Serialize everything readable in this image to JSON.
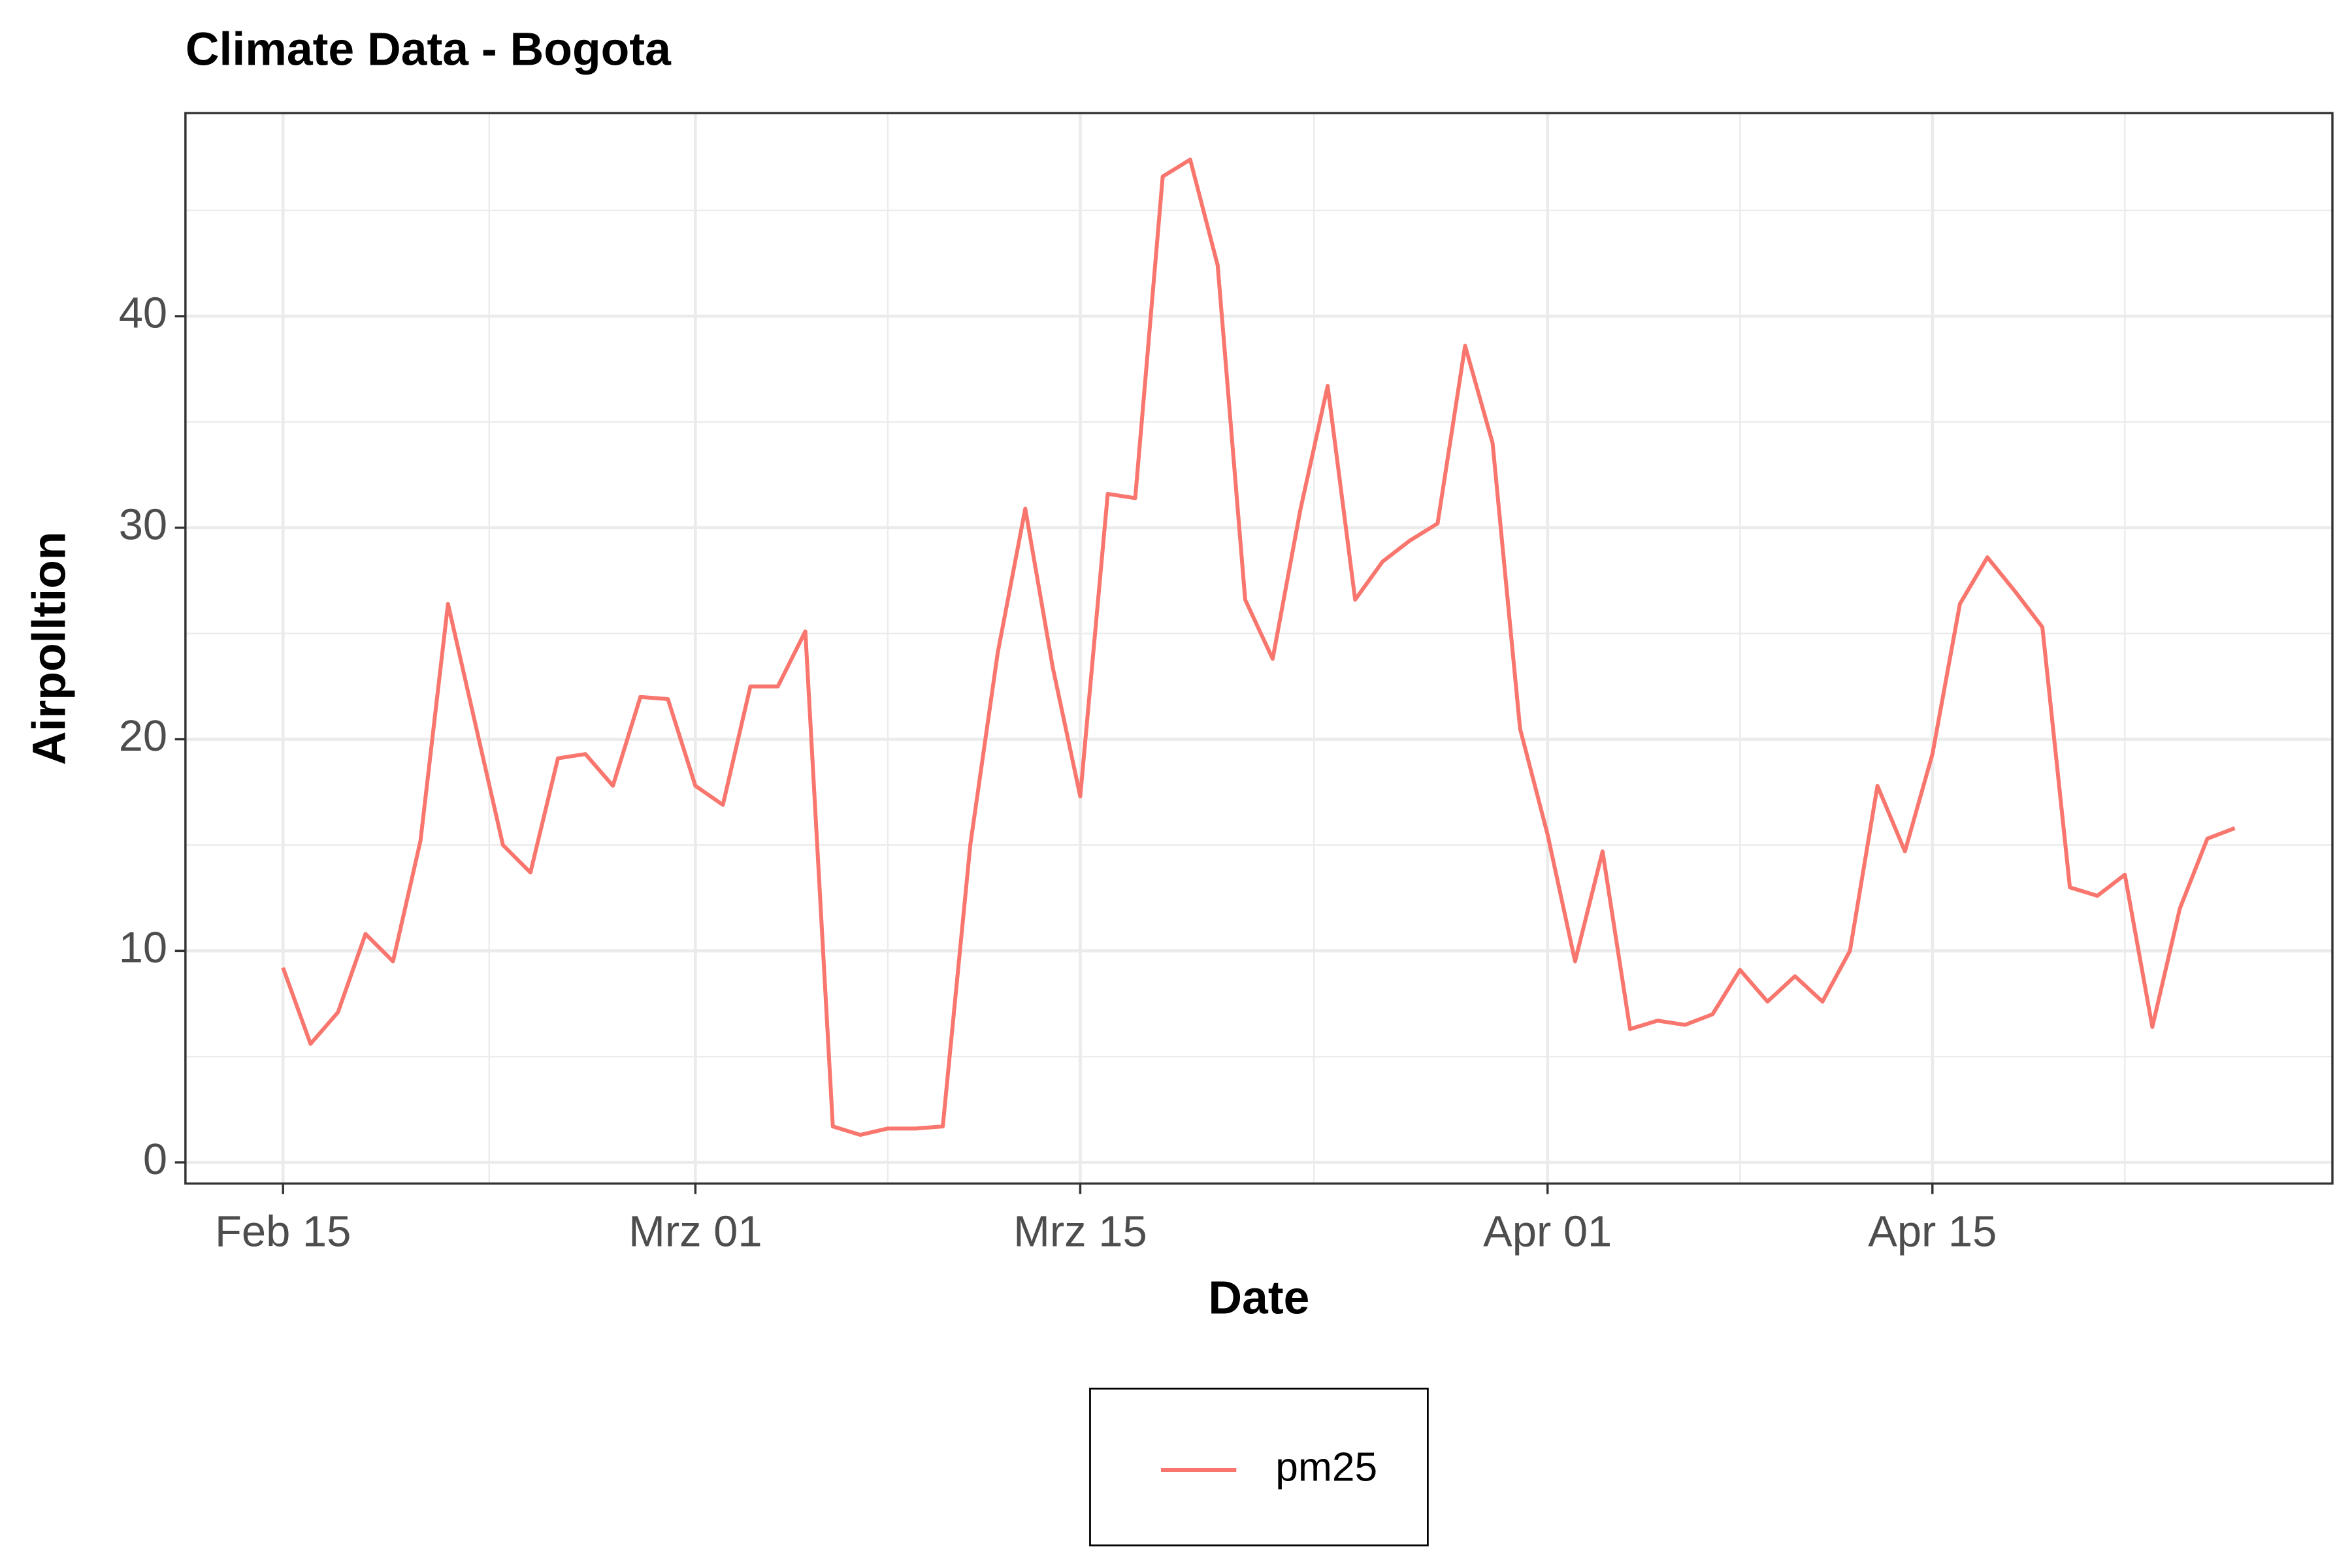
{
  "chart_data": {
    "type": "line",
    "title": "Climate Data -  Bogota",
    "x_label": "Date",
    "y_label": "Airpolltion",
    "x": [
      "02-15",
      "02-16",
      "02-17",
      "02-18",
      "02-19",
      "02-20",
      "02-21",
      "02-22",
      "02-23",
      "02-24",
      "02-25",
      "02-26",
      "02-27",
      "02-28",
      "02-29",
      "03-01",
      "03-02",
      "03-03",
      "03-04",
      "03-05",
      "03-06",
      "03-07",
      "03-08",
      "03-09",
      "03-10",
      "03-11",
      "03-12",
      "03-13",
      "03-14",
      "03-15",
      "03-16",
      "03-17",
      "03-18",
      "03-19",
      "03-20",
      "03-21",
      "03-22",
      "03-23",
      "03-24",
      "03-25",
      "03-26",
      "03-27",
      "03-28",
      "03-29",
      "03-30",
      "03-31",
      "04-01",
      "04-02",
      "04-03",
      "04-04",
      "04-05",
      "04-06",
      "04-07",
      "04-08",
      "04-09",
      "04-10",
      "04-11",
      "04-12",
      "04-13",
      "04-14",
      "04-15",
      "04-16",
      "04-17",
      "04-18",
      "04-19",
      "04-20",
      "04-21",
      "04-22",
      "04-23",
      "04-24",
      "04-25",
      "04-26"
    ],
    "series": [
      {
        "name": "pm25",
        "color": "#F8766D",
        "values": [
          9.2,
          5.6,
          7.1,
          10.8,
          9.5,
          15.2,
          26.4,
          20.7,
          15.0,
          13.7,
          19.1,
          19.3,
          17.8,
          22.0,
          21.9,
          17.8,
          16.9,
          22.5,
          22.5,
          25.1,
          1.7,
          1.3,
          1.6,
          1.6,
          1.7,
          15.0,
          24.1,
          30.9,
          23.4,
          17.3,
          31.6,
          31.4,
          46.6,
          47.4,
          42.4,
          26.6,
          23.8,
          30.8,
          36.7,
          26.6,
          28.4,
          29.4,
          30.2,
          38.6,
          34.0,
          20.5,
          15.5,
          9.5,
          14.7,
          6.3,
          6.7,
          6.5,
          7.0,
          9.1,
          7.6,
          8.8,
          7.6,
          10.0,
          17.8,
          14.7,
          19.3,
          26.4,
          28.6,
          27.0,
          25.3,
          13.0,
          12.6,
          13.6,
          6.4,
          12.0,
          15.3,
          15.8
        ]
      }
    ],
    "xticks": [
      {
        "value": "02-15",
        "label": "Feb 15"
      },
      {
        "value": "03-01",
        "label": "Mrz 01"
      },
      {
        "value": "03-15",
        "label": "Mrz 15"
      },
      {
        "value": "04-01",
        "label": "Apr 01"
      },
      {
        "value": "04-15",
        "label": "Apr 15"
      }
    ],
    "ylim": [
      -1,
      49.6
    ],
    "yticks": [
      0,
      10,
      20,
      30,
      40
    ],
    "grid": true,
    "legend_position": "bottom"
  }
}
